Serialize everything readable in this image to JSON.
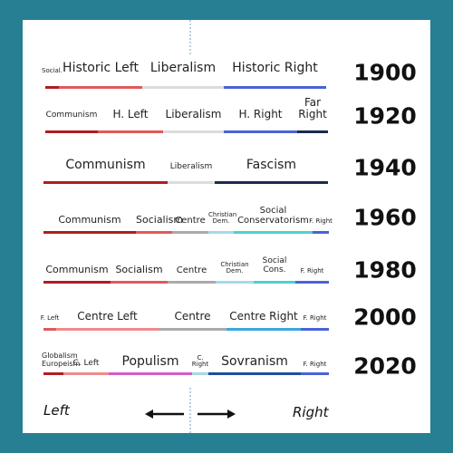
{
  "rows": [
    {
      "year": "1900",
      "segments": [
        {
          "label": "Social.",
          "color": "#b01c22"
        },
        {
          "label": "Historic Left",
          "color": "#e05a5a"
        },
        {
          "label": "Liberalism",
          "color": "#dcdcdc"
        },
        {
          "label": "Historic Right",
          "color": "#4a63d6"
        }
      ]
    },
    {
      "year": "1920",
      "segments": [
        {
          "label": "Communism",
          "color": "#b01c22"
        },
        {
          "label": "H. Left",
          "color": "#e05a5a"
        },
        {
          "label": "Liberalism",
          "color": "#dcdcdc"
        },
        {
          "label": "H. Right",
          "color": "#4a63d6"
        },
        {
          "label": "Far Right",
          "color": "#1a2a50"
        }
      ]
    },
    {
      "year": "1940",
      "segments": [
        {
          "label": "Communism",
          "color": "#b01c22"
        },
        {
          "label": "Liberalism",
          "color": "#dcdcdc"
        },
        {
          "label": "Fascism",
          "color": "#1a2a50"
        }
      ]
    },
    {
      "year": "1960",
      "segments": [
        {
          "label": "Communism",
          "color": "#b01c22"
        },
        {
          "label": "Socialism",
          "color": "#e05a5a"
        },
        {
          "label": "Centre",
          "color": "#aaaaaa"
        },
        {
          "label": "Christian Dem.",
          "color": "#a8d8ea"
        },
        {
          "label": "Social Conservatorism",
          "color": "#4fd0d0"
        },
        {
          "label": "F. Right",
          "color": "#4a63d6"
        }
      ]
    },
    {
      "year": "1980",
      "segments": [
        {
          "label": "Communism",
          "color": "#b01c22"
        },
        {
          "label": "Socialism",
          "color": "#e05a5a"
        },
        {
          "label": "Centre",
          "color": "#aaaaaa"
        },
        {
          "label": "Christian Dem.",
          "color": "#a8d8ea"
        },
        {
          "label": "Social Cons.",
          "color": "#4fd0d0"
        },
        {
          "label": "F. Right",
          "color": "#4a63d6"
        }
      ]
    },
    {
      "year": "2000",
      "segments": [
        {
          "label": "F. Left",
          "color": "#e05a5a"
        },
        {
          "label": "Centre Left",
          "color": "#f08a8a"
        },
        {
          "label": "Centre",
          "color": "#aaaaaa"
        },
        {
          "label": "Centre Right",
          "color": "#3aa8e0"
        },
        {
          "label": "F. Right",
          "color": "#4a63d6"
        }
      ]
    },
    {
      "year": "2020",
      "segments": [
        {
          "label": "Globalism Europeism",
          "color": "#b01c22"
        },
        {
          "label": "C. Left",
          "color": "#f08a8a"
        },
        {
          "label": "Populism",
          "color": "#d65ac8"
        },
        {
          "label": "C. Right",
          "color": "#a8d8ea"
        },
        {
          "label": "Sovranism",
          "color": "#1c4fa0"
        },
        {
          "label": "F. Right",
          "color": "#4a63d6"
        }
      ]
    }
  ],
  "footer": {
    "left": "Left",
    "right": "Right"
  }
}
